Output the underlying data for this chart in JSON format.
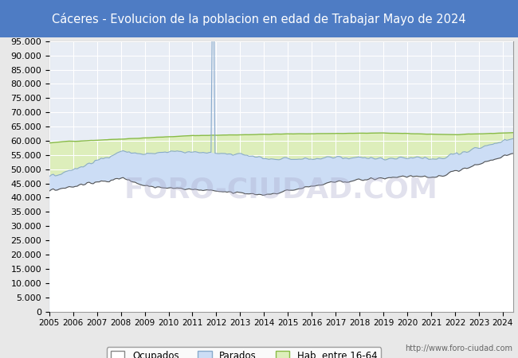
{
  "title": "Cáceres - Evolucion de la poblacion en edad de Trabajar Mayo de 2024",
  "title_bg_color": "#4E7CC4",
  "title_text_color": "white",
  "ylim": [
    0,
    95000
  ],
  "ytick_step": 5000,
  "xstart": 2005,
  "xend": 2024.42,
  "hab_color": "#DDEEBB",
  "hab_edge_color": "#88BB44",
  "hab_edge_width": 1.0,
  "parados_color": "#CCDDF5",
  "parados_edge_color": "#88AACC",
  "parados_edge_width": 0.8,
  "ocupados_color": "#FFFFFF",
  "ocupados_edge_color": "#555555",
  "ocupados_edge_width": 0.8,
  "bg_color": "#E8E8E8",
  "plot_bg_color": "#E8EDF5",
  "grid_color": "#FFFFFF",
  "grid_lw": 0.8,
  "watermark": "FORO-CIUDAD.COM",
  "url": "http://www.foro-ciudad.com",
  "legend_labels": [
    "Ocupados",
    "Parados",
    "Hab. entre 16-64"
  ],
  "figsize": [
    6.5,
    4.5
  ],
  "dpi": 100,
  "title_fontsize": 10.5,
  "tick_fontsize": 8,
  "url_fontsize": 7
}
